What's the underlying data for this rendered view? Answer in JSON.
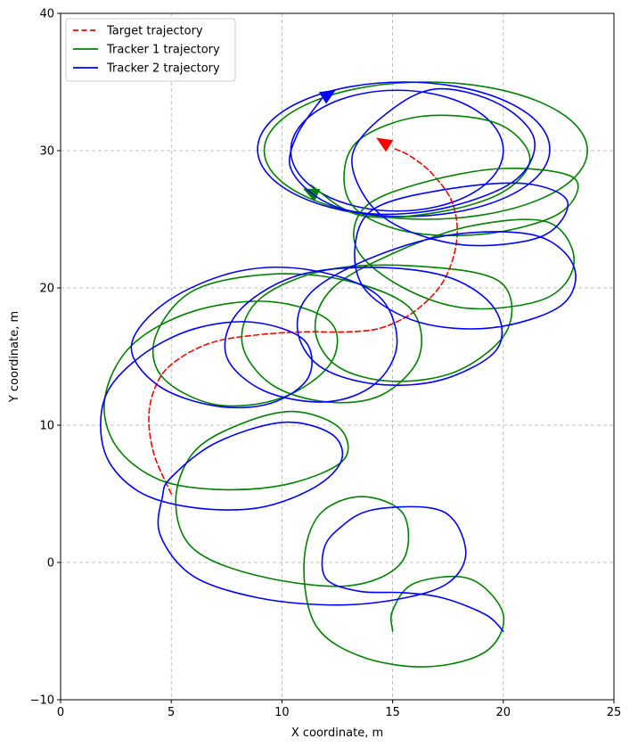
{
  "chart_data": {
    "type": "line",
    "title": "",
    "xlabel": "X coordinate, m",
    "ylabel": "Y coordinate, m",
    "xlim": [
      0,
      25
    ],
    "ylim": [
      -10,
      40
    ],
    "xticks": [
      "0",
      "5",
      "10",
      "15",
      "20",
      "25"
    ],
    "yticks": [
      "−10",
      "0",
      "10",
      "20",
      "30",
      "40"
    ],
    "grid": true,
    "legend_position": "top-left",
    "series": [
      {
        "name": "Target trajectory",
        "color": "#ff0000",
        "style": "dashed",
        "points": [
          [
            5,
            5
          ],
          [
            4.2,
            8
          ],
          [
            4,
            11
          ],
          [
            4.5,
            13.5
          ],
          [
            5.5,
            15
          ],
          [
            7,
            16.1
          ],
          [
            9,
            16.6
          ],
          [
            11,
            16.8
          ],
          [
            13,
            16.8
          ],
          [
            14.5,
            17.1
          ],
          [
            16,
            18.3
          ],
          [
            17.3,
            20.5
          ],
          [
            17.9,
            23.5
          ],
          [
            17.7,
            26.2
          ],
          [
            16.8,
            28.3
          ],
          [
            15.8,
            29.6
          ],
          [
            15,
            30.2
          ]
        ],
        "arrow": {
          "from": [
            15,
            30.2
          ],
          "to": [
            14.3,
            30.9
          ]
        }
      },
      {
        "name": "Tracker 1 trajectory",
        "color": "#008000",
        "style": "solid",
        "points": [
          [
            15,
            -5
          ],
          [
            15,
            -3.5
          ],
          [
            16,
            -1.5
          ],
          [
            18.5,
            -1.2
          ],
          [
            20,
            -3.8
          ],
          [
            19.2,
            -6.5
          ],
          [
            16.5,
            -7.6
          ],
          [
            13.5,
            -6.8
          ],
          [
            11.5,
            -4.5
          ],
          [
            11,
            0
          ],
          [
            11.7,
            3.5
          ],
          [
            13.6,
            4.8
          ],
          [
            15.5,
            3.5
          ],
          [
            15.4,
            0
          ],
          [
            13,
            -1.7
          ],
          [
            9,
            -1
          ],
          [
            6,
            1
          ],
          [
            5.2,
            4.5
          ],
          [
            6,
            8
          ],
          [
            8,
            10
          ],
          [
            10.5,
            11
          ],
          [
            12.6,
            9.8
          ],
          [
            12.8,
            7.5
          ],
          [
            10.5,
            5.8
          ],
          [
            7.5,
            5.3
          ],
          [
            4.5,
            6
          ],
          [
            2.5,
            8.5
          ],
          [
            2,
            12
          ],
          [
            3.2,
            15.8
          ],
          [
            6,
            18.3
          ],
          [
            9.5,
            19
          ],
          [
            12.2,
            17.5
          ],
          [
            12.2,
            14.5
          ],
          [
            10,
            12
          ],
          [
            7,
            11.5
          ],
          [
            4.6,
            13.5
          ],
          [
            4.3,
            16.5
          ],
          [
            6,
            19.8
          ],
          [
            9.5,
            21
          ],
          [
            13,
            20.5
          ],
          [
            15.8,
            18.5
          ],
          [
            16.2,
            15
          ],
          [
            14.5,
            12.2
          ],
          [
            12,
            11.7
          ],
          [
            9.5,
            13
          ],
          [
            8.2,
            16
          ],
          [
            9,
            19.2
          ],
          [
            12,
            21.3
          ],
          [
            16,
            21.6
          ],
          [
            19.8,
            20.5
          ],
          [
            20.2,
            17
          ],
          [
            18,
            14
          ],
          [
            15,
            13.2
          ],
          [
            12.5,
            14.3
          ],
          [
            11.5,
            17
          ],
          [
            12.3,
            20
          ],
          [
            15,
            22.5
          ],
          [
            18.5,
            24.5
          ],
          [
            22,
            24.8
          ],
          [
            23.2,
            22
          ],
          [
            22,
            19.3
          ],
          [
            18.5,
            18.5
          ],
          [
            15.5,
            20
          ],
          [
            13.4,
            22.8
          ],
          [
            13.7,
            25.8
          ],
          [
            16.2,
            27.6
          ],
          [
            20,
            28.7
          ],
          [
            23.2,
            28
          ],
          [
            22.6,
            25.5
          ],
          [
            19.5,
            24
          ],
          [
            16,
            24
          ],
          [
            13.5,
            25.5
          ],
          [
            12.8,
            28
          ],
          [
            13.5,
            30.8
          ],
          [
            16.3,
            32.5
          ],
          [
            19.7,
            32
          ],
          [
            21.2,
            29.5
          ],
          [
            20,
            27
          ],
          [
            17,
            25.5
          ],
          [
            13.5,
            25.3
          ],
          [
            11.3,
            27.5
          ]
        ],
        "arrow": {
          "from": [
            11.8,
            26.6
          ],
          "to": [
            11,
            27.2
          ]
        }
      },
      {
        "name": "Tracker 2 trajectory",
        "color": "#0000ff",
        "style": "solid",
        "points": [
          [
            20,
            -5
          ],
          [
            19.2,
            -3.8
          ],
          [
            17.3,
            -2.6
          ],
          [
            15.5,
            -2.2
          ],
          [
            13.5,
            -2.1
          ],
          [
            12,
            -1.2
          ],
          [
            11.9,
            1
          ],
          [
            12.6,
            2.5
          ],
          [
            14,
            3.8
          ],
          [
            16.6,
            4
          ],
          [
            17.8,
            3
          ],
          [
            18.3,
            0.5
          ],
          [
            17.5,
            -1.5
          ],
          [
            15.5,
            -2.6
          ],
          [
            12.5,
            -3.1
          ],
          [
            9,
            -2.6
          ],
          [
            6,
            -1
          ],
          [
            4.5,
            2
          ],
          [
            4.6,
            4.8
          ],
          [
            5,
            6.2
          ],
          [
            7,
            8.7
          ],
          [
            10,
            10.2
          ],
          [
            12.2,
            9.4
          ],
          [
            12.7,
            7.5
          ],
          [
            11.5,
            5.5
          ],
          [
            9,
            4
          ],
          [
            6,
            4
          ],
          [
            3.5,
            5.2
          ],
          [
            2,
            8
          ],
          [
            2,
            12
          ],
          [
            3.6,
            15
          ],
          [
            6,
            17
          ],
          [
            8.7,
            17.5
          ],
          [
            11,
            16.2
          ],
          [
            11.2,
            13.5
          ],
          [
            9.5,
            11.6
          ],
          [
            7,
            11.4
          ],
          [
            4.4,
            12.9
          ],
          [
            3.2,
            15.8
          ],
          [
            4.8,
            19
          ],
          [
            8,
            21.2
          ],
          [
            11.3,
            21.3
          ],
          [
            14.3,
            19.5
          ],
          [
            15.2,
            16
          ],
          [
            14.2,
            13
          ],
          [
            12,
            11.7
          ],
          [
            9.2,
            12.5
          ],
          [
            7.5,
            15
          ],
          [
            8,
            18.2
          ],
          [
            10.5,
            20.8
          ],
          [
            14,
            21.5
          ],
          [
            17.5,
            20.8
          ],
          [
            19.6,
            18.5
          ],
          [
            19.7,
            15.5
          ],
          [
            17.2,
            13.3
          ],
          [
            14.2,
            13
          ],
          [
            11.7,
            14.3
          ],
          [
            10.7,
            17
          ],
          [
            11.4,
            19.8
          ],
          [
            14.2,
            22.3
          ],
          [
            17.8,
            23.9
          ],
          [
            21.5,
            23.8
          ],
          [
            23.2,
            21.5
          ],
          [
            22.6,
            18.7
          ],
          [
            19.5,
            17.1
          ],
          [
            16.2,
            17.5
          ],
          [
            13.8,
            19.8
          ],
          [
            13.3,
            23
          ],
          [
            14.2,
            25.8
          ],
          [
            17.5,
            27.2
          ],
          [
            21,
            27.6
          ],
          [
            22.9,
            26.3
          ],
          [
            21.8,
            23.8
          ],
          [
            18.5,
            23.1
          ],
          [
            15.5,
            24.3
          ],
          [
            13.8,
            26.5
          ],
          [
            13.2,
            29.8
          ],
          [
            14.8,
            32.8
          ],
          [
            17,
            34.5
          ],
          [
            19.8,
            33.4
          ],
          [
            21.4,
            30.8
          ],
          [
            20.5,
            27.8
          ],
          [
            17.3,
            25.8
          ],
          [
            14,
            25.4
          ],
          [
            11.8,
            26.4
          ],
          [
            10.4,
            28.7
          ],
          [
            10.7,
            31.2
          ],
          [
            11.8,
            33.8
          ]
        ],
        "arrow": {
          "from": [
            11.6,
            33.6
          ],
          "to": [
            12.4,
            34.4
          ]
        }
      }
    ],
    "extra_loops": [
      {
        "color": "#008000",
        "cx": 16.5,
        "cy": 30.0,
        "rx": 7.3,
        "ry": 5.0
      },
      {
        "color": "#0000ff",
        "cx": 15.5,
        "cy": 30.1,
        "rx": 6.6,
        "ry": 4.9
      },
      {
        "color": "#0000ff",
        "cx": 15.2,
        "cy": 30.0,
        "rx": 4.8,
        "ry": 4.4
      }
    ]
  }
}
